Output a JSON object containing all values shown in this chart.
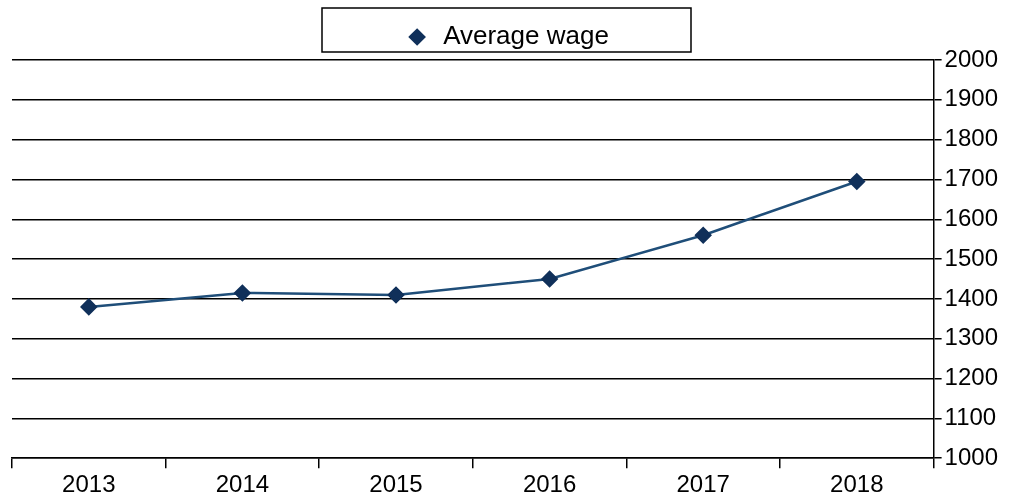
{
  "chart_data": {
    "type": "line",
    "categories": [
      "2013",
      "2014",
      "2015",
      "2016",
      "2017",
      "2018"
    ],
    "series": [
      {
        "name": "Average wage",
        "color": "#1f4e79",
        "values": [
          1380,
          1415,
          1410,
          1450,
          1560,
          1695
        ]
      }
    ],
    "ylim": [
      1000,
      2000
    ],
    "yticks": [
      1000,
      1100,
      1200,
      1300,
      1400,
      1500,
      1600,
      1700,
      1800,
      1900,
      2000
    ],
    "grid": "y",
    "legend": "top",
    "marker": "diamond",
    "line_style": "solid"
  }
}
